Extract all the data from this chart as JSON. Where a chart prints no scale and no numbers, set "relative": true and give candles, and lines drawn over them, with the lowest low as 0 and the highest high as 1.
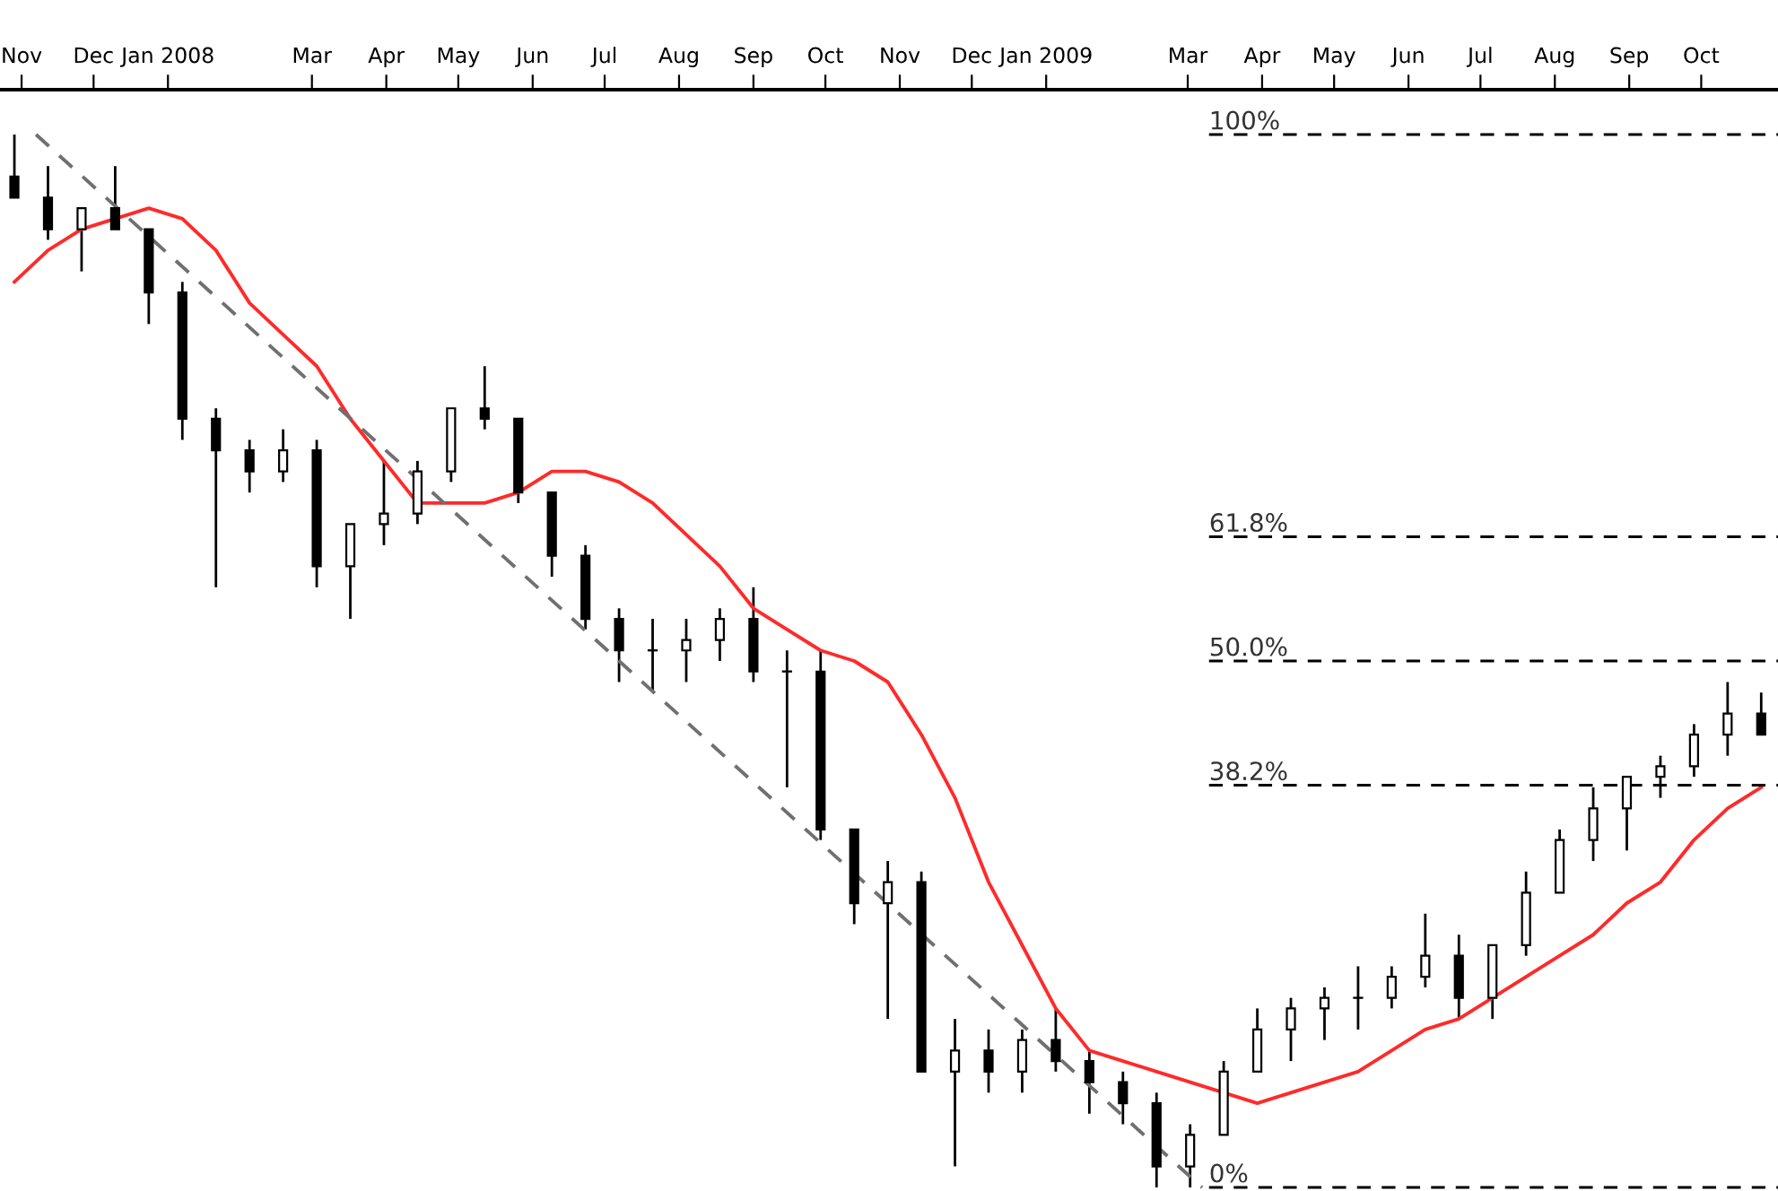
{
  "chart_data": {
    "type": "candlestick",
    "relative": true,
    "x": [
      "2007-10-29",
      "2007-11-12",
      "2007-11-26",
      "2007-12-10",
      "2007-12-24",
      "2008-01-07",
      "2008-01-21",
      "2008-02-04",
      "2008-02-18",
      "2008-03-03",
      "2008-03-17",
      "2008-03-31",
      "2008-04-14",
      "2008-04-28",
      "2008-05-12",
      "2008-05-26",
      "2008-06-09",
      "2008-06-23",
      "2008-07-07",
      "2008-07-21",
      "2008-08-04",
      "2008-08-18",
      "2008-09-01",
      "2008-09-15",
      "2008-09-29",
      "2008-10-13",
      "2008-10-27",
      "2008-11-10",
      "2008-11-24",
      "2008-12-08",
      "2008-12-22",
      "2009-01-05",
      "2009-01-19",
      "2009-02-02",
      "2009-02-16",
      "2009-03-02",
      "2009-03-16",
      "2009-03-30",
      "2009-04-13",
      "2009-04-27",
      "2009-05-11",
      "2009-05-25",
      "2009-06-08",
      "2009-06-22",
      "2009-07-06",
      "2009-07-20",
      "2009-08-03",
      "2009-08-17",
      "2009-08-31",
      "2009-09-14",
      "2009-09-28",
      "2009-10-12",
      "2009-10-26"
    ],
    "xlim": [
      "2007-10-23",
      "2009-11-02"
    ],
    "xticks": [
      {
        "value": "2007-11-01",
        "label": "Nov"
      },
      {
        "value": "2007-12-01",
        "label": "Dec"
      },
      {
        "value": "2008-01-01",
        "label": "Jan 2008"
      },
      {
        "value": "2008-03-01",
        "label": "Mar"
      },
      {
        "value": "2008-04-01",
        "label": "Apr"
      },
      {
        "value": "2008-05-01",
        "label": "May"
      },
      {
        "value": "2008-06-01",
        "label": "Jun"
      },
      {
        "value": "2008-07-01",
        "label": "Jul"
      },
      {
        "value": "2008-08-01",
        "label": "Aug"
      },
      {
        "value": "2008-09-01",
        "label": "Sep"
      },
      {
        "value": "2008-10-01",
        "label": "Oct"
      },
      {
        "value": "2008-11-01",
        "label": "Nov"
      },
      {
        "value": "2008-12-01",
        "label": "Dec"
      },
      {
        "value": "2009-01-01",
        "label": "Jan 2009"
      },
      {
        "value": "2009-03-01",
        "label": "Mar"
      },
      {
        "value": "2009-04-01",
        "label": "Apr"
      },
      {
        "value": "2009-05-01",
        "label": "May"
      },
      {
        "value": "2009-06-01",
        "label": "Jun"
      },
      {
        "value": "2009-07-01",
        "label": "Jul"
      },
      {
        "value": "2009-08-01",
        "label": "Aug"
      },
      {
        "value": "2009-09-01",
        "label": "Sep"
      },
      {
        "value": "2009-10-01",
        "label": "Oct"
      }
    ],
    "ohlc": [
      [
        0.96,
        1.0,
        0.94,
        0.94
      ],
      [
        0.94,
        0.97,
        0.9,
        0.91
      ],
      [
        0.91,
        0.93,
        0.87,
        0.93
      ],
      [
        0.93,
        0.97,
        0.91,
        0.91
      ],
      [
        0.91,
        0.91,
        0.82,
        0.85
      ],
      [
        0.85,
        0.86,
        0.71,
        0.73
      ],
      [
        0.73,
        0.74,
        0.57,
        0.7
      ],
      [
        0.7,
        0.71,
        0.66,
        0.68
      ],
      [
        0.68,
        0.72,
        0.67,
        0.7
      ],
      [
        0.7,
        0.71,
        0.57,
        0.59
      ],
      [
        0.59,
        0.63,
        0.54,
        0.63
      ],
      [
        0.63,
        0.69,
        0.61,
        0.64
      ],
      [
        0.64,
        0.69,
        0.63,
        0.68
      ],
      [
        0.68,
        0.74,
        0.67,
        0.74
      ],
      [
        0.74,
        0.78,
        0.72,
        0.73
      ],
      [
        0.73,
        0.73,
        0.65,
        0.66
      ],
      [
        0.66,
        0.66,
        0.58,
        0.6
      ],
      [
        0.6,
        0.61,
        0.53,
        0.54
      ],
      [
        0.54,
        0.55,
        0.48,
        0.51
      ],
      [
        0.51,
        0.54,
        0.47,
        0.51
      ],
      [
        0.51,
        0.54,
        0.48,
        0.52
      ],
      [
        0.52,
        0.55,
        0.5,
        0.54
      ],
      [
        0.54,
        0.57,
        0.48,
        0.49
      ],
      [
        0.49,
        0.51,
        0.38,
        0.49
      ],
      [
        0.49,
        0.51,
        0.33,
        0.34
      ],
      [
        0.34,
        0.34,
        0.25,
        0.27
      ],
      [
        0.27,
        0.31,
        0.16,
        0.29
      ],
      [
        0.29,
        0.3,
        0.11,
        0.11
      ],
      [
        0.11,
        0.16,
        0.02,
        0.13
      ],
      [
        0.13,
        0.15,
        0.09,
        0.11
      ],
      [
        0.11,
        0.15,
        0.09,
        0.14
      ],
      [
        0.14,
        0.17,
        0.11,
        0.12
      ],
      [
        0.12,
        0.13,
        0.07,
        0.1
      ],
      [
        0.1,
        0.11,
        0.06,
        0.08
      ],
      [
        0.08,
        0.09,
        0.0,
        0.02
      ],
      [
        0.02,
        0.06,
        0.0,
        0.05
      ],
      [
        0.05,
        0.12,
        0.05,
        0.11
      ],
      [
        0.11,
        0.17,
        0.11,
        0.15
      ],
      [
        0.15,
        0.18,
        0.12,
        0.17
      ],
      [
        0.17,
        0.19,
        0.14,
        0.18
      ],
      [
        0.18,
        0.21,
        0.15,
        0.18
      ],
      [
        0.18,
        0.21,
        0.17,
        0.2
      ],
      [
        0.2,
        0.26,
        0.19,
        0.22
      ],
      [
        0.22,
        0.24,
        0.16,
        0.18
      ],
      [
        0.18,
        0.23,
        0.16,
        0.23
      ],
      [
        0.23,
        0.3,
        0.22,
        0.28
      ],
      [
        0.28,
        0.34,
        0.28,
        0.33
      ],
      [
        0.33,
        0.38,
        0.31,
        0.36
      ],
      [
        0.36,
        0.39,
        0.32,
        0.39
      ],
      [
        0.39,
        0.41,
        0.37,
        0.4
      ],
      [
        0.4,
        0.44,
        0.39,
        0.43
      ],
      [
        0.43,
        0.48,
        0.41,
        0.45
      ],
      [
        0.45,
        0.47,
        0.43,
        0.43
      ]
    ],
    "color": "#000000",
    "series": [
      {
        "type": "line",
        "color": "#ff2a2a",
        "values": [
          0.86,
          0.89,
          0.91,
          0.92,
          0.93,
          0.92,
          0.89,
          0.84,
          0.81,
          0.78,
          0.73,
          0.69,
          0.65,
          0.65,
          0.65,
          0.66,
          0.68,
          0.68,
          0.67,
          0.65,
          0.62,
          0.59,
          0.55,
          0.53,
          0.51,
          0.5,
          0.48,
          0.43,
          0.37,
          0.29,
          0.23,
          0.17,
          0.13,
          0.12,
          0.11,
          0.1,
          0.09,
          0.08,
          0.09,
          0.1,
          0.11,
          0.13,
          0.15,
          0.16,
          0.18,
          0.2,
          0.22,
          0.24,
          0.27,
          0.29,
          0.33,
          0.36,
          0.38
        ]
      },
      {
        "type": "line",
        "color": "#707070",
        "line_style": "dashed",
        "x": [
          "2007-11-07",
          "2009-03-07"
        ],
        "values": [
          1.0,
          0.0
        ]
      }
    ],
    "ref_lines": [
      {
        "axis": "y",
        "value": 1.0,
        "label": "100%",
        "color": "#000000",
        "line_style": "dashed"
      },
      {
        "axis": "y",
        "value": 0.618,
        "label": "61.8%",
        "color": "#000000",
        "line_style": "dashed"
      },
      {
        "axis": "y",
        "value": 0.5,
        "label": "50.0%",
        "color": "#000000",
        "line_style": "dashed"
      },
      {
        "axis": "y",
        "value": 0.382,
        "label": "38.2%",
        "color": "#000000",
        "line_style": "dashed"
      },
      {
        "axis": "y",
        "value": 0.0,
        "label": "0%",
        "color": "#000000",
        "line_style": "dashed"
      }
    ]
  }
}
